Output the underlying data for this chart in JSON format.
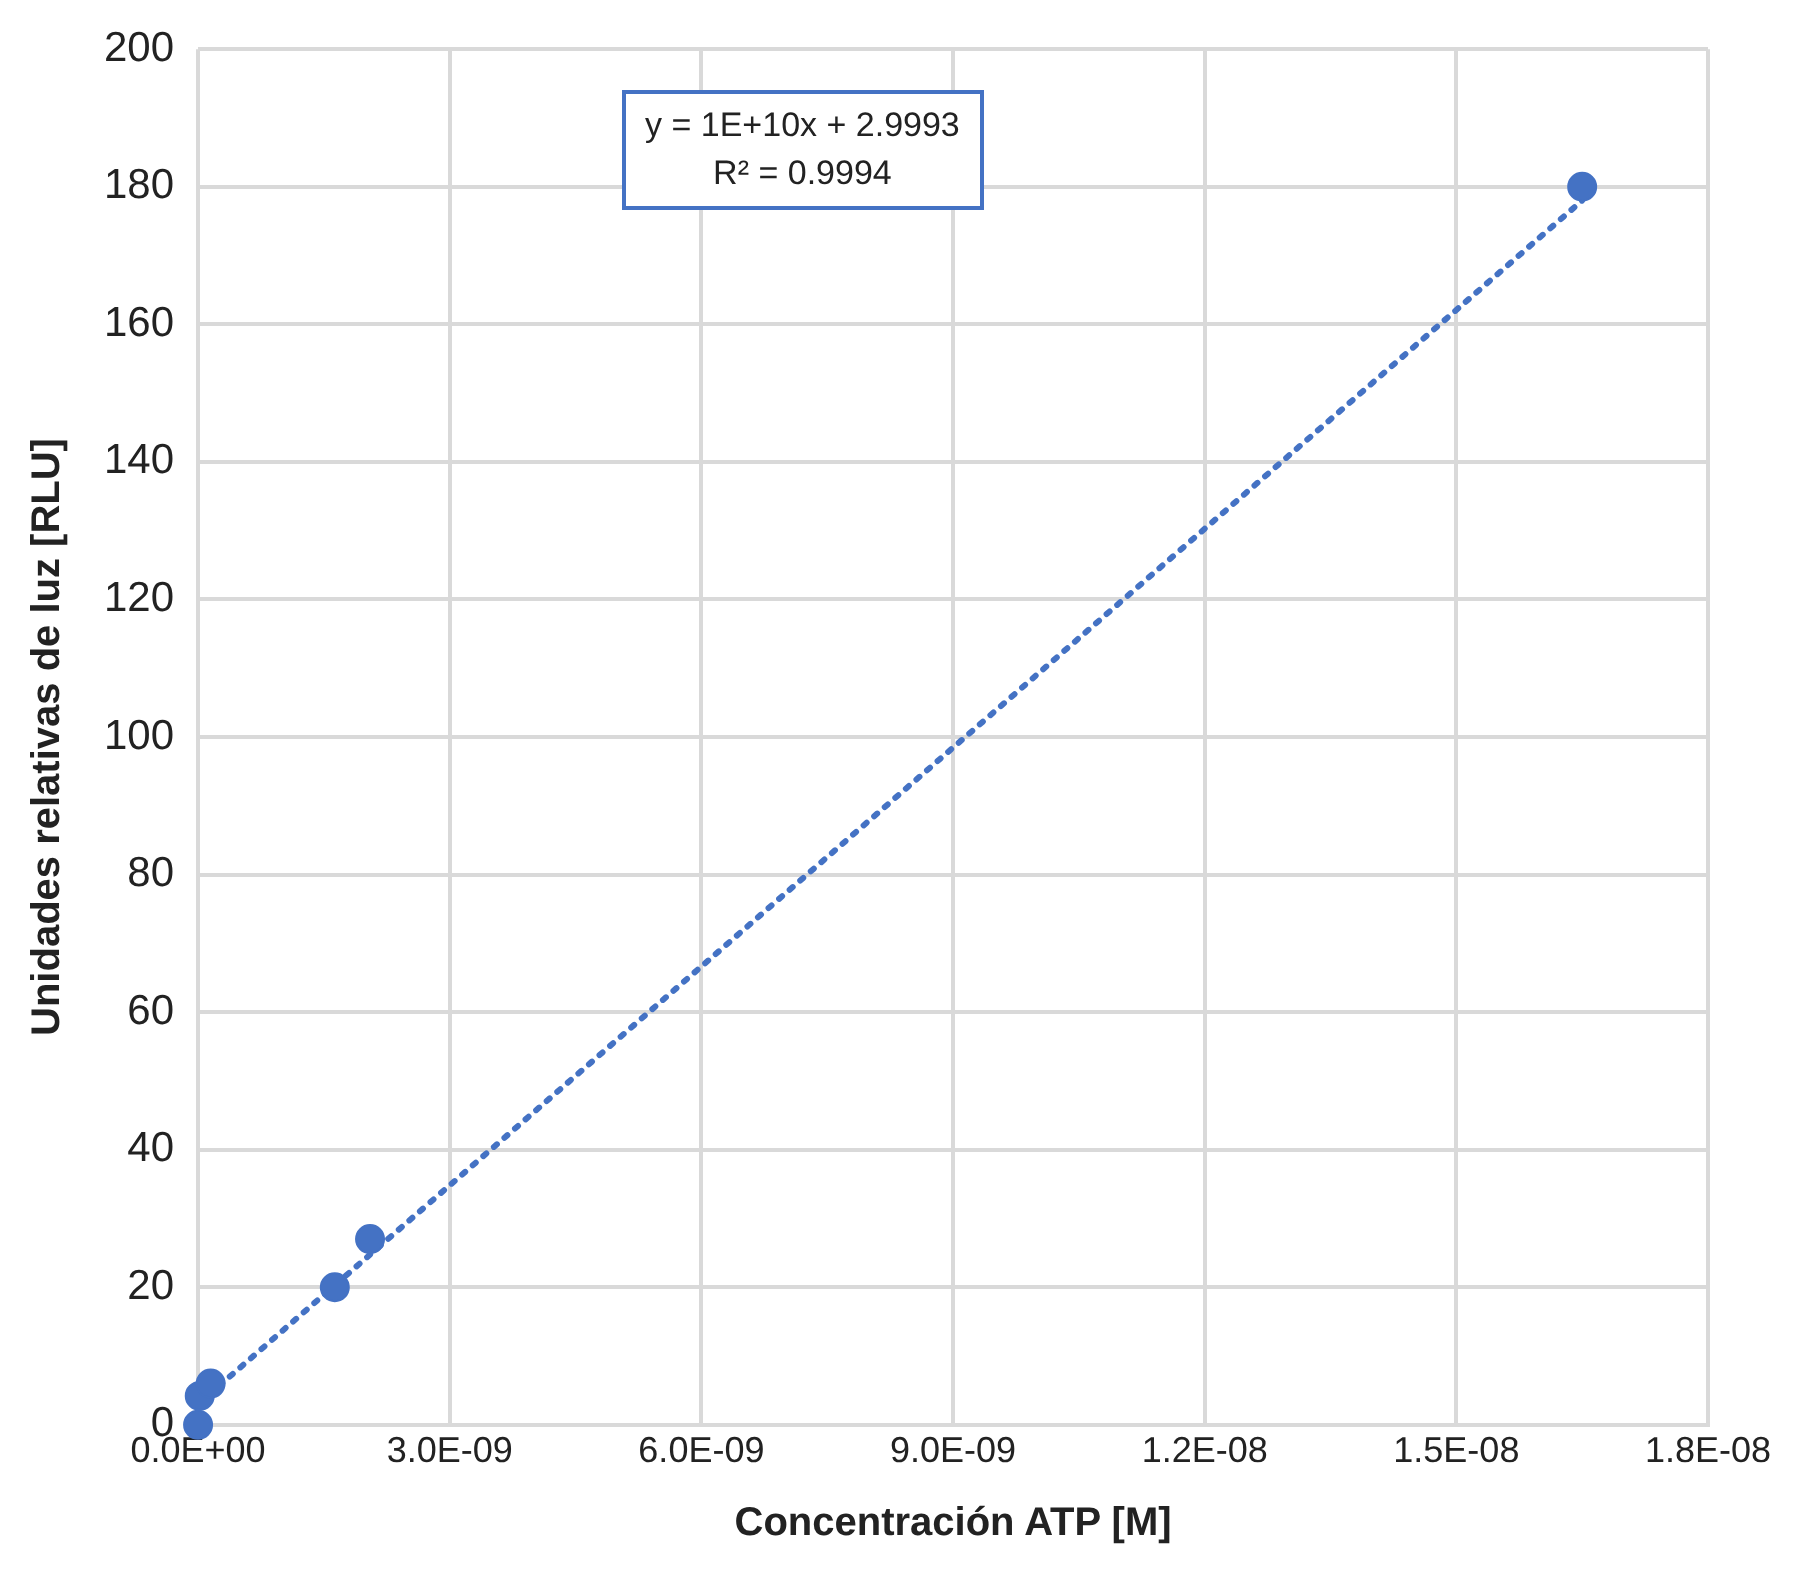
{
  "chart_data": {
    "type": "scatter",
    "xlabel": "Concentración ATP [M]",
    "ylabel": "Unidades relativas de luz [RLU]",
    "xlim": [
      0,
      1.8e-08
    ],
    "xticks": [
      {
        "value": 0,
        "label": "0.0E+00"
      },
      {
        "value": 3e-09,
        "label": "3.0E-09"
      },
      {
        "value": 6e-09,
        "label": "6.0E-09"
      },
      {
        "value": 9e-09,
        "label": "9.0E-09"
      },
      {
        "value": 1.2e-08,
        "label": "1.2E-08"
      },
      {
        "value": 1.5e-08,
        "label": "1.5E-08"
      },
      {
        "value": 1.8e-08,
        "label": "1.8E-08"
      }
    ],
    "ylim": [
      0,
      200
    ],
    "yticks": [
      0,
      20,
      40,
      60,
      80,
      100,
      120,
      140,
      160,
      180,
      200
    ],
    "grid": true,
    "legend": false,
    "annotations": [
      "y = 1E+10x + 2.9993",
      "R² = 0.9994"
    ],
    "series": [
      {
        "type": "scatter",
        "color": "#4472c4",
        "marker": "circle",
        "x": [
          0,
          2e-11,
          1.5e-10,
          1.63e-09,
          2.05e-09,
          1.65e-08
        ],
        "values": [
          0,
          4.2,
          6,
          20,
          27,
          180
        ]
      },
      {
        "type": "line",
        "color": "#4472c4",
        "marker": "none",
        "line_style": "dotted",
        "x": [
          0,
          1.65e-08
        ],
        "values": [
          3,
          178
        ]
      }
    ]
  }
}
